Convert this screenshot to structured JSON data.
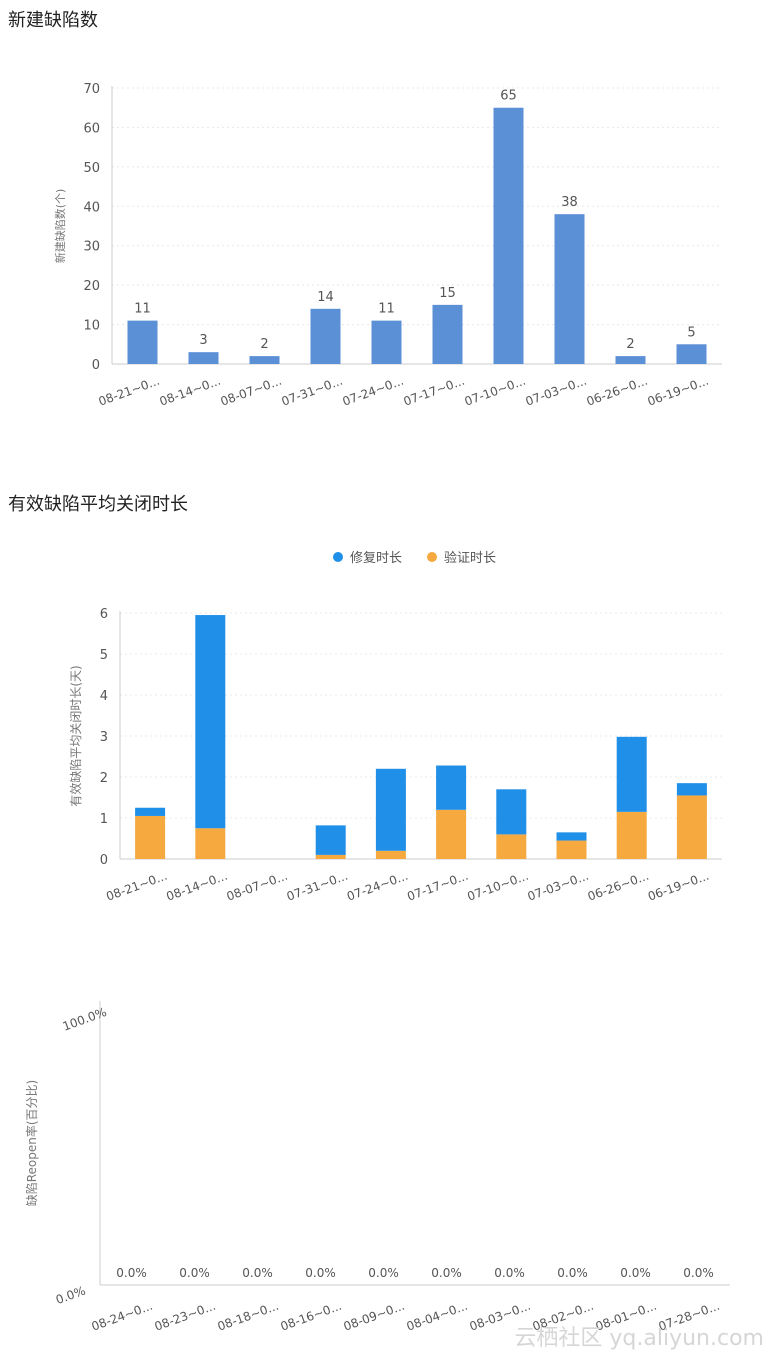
{
  "colors": {
    "bar1": "#5b8fd6",
    "repair": "#1f8fe8",
    "verify": "#f5a93f",
    "axis": "#cccccc",
    "grid": "#e8e8e8",
    "text": "#555555"
  },
  "sections": {
    "new_defects_title": "新建缺陷数",
    "avg_close_title": "有效缺陷平均关闭时长"
  },
  "watermark": "云栖社区 yq.aliyun.com",
  "chart_data": [
    {
      "type": "bar",
      "title": "新建缺陷数",
      "ylabel": "新建缺陷数(个)",
      "ylim": [
        0,
        70
      ],
      "yticks": [
        0,
        10,
        20,
        30,
        40,
        50,
        60,
        70
      ],
      "categories": [
        "08-21~0...",
        "08-14~0...",
        "08-07~0...",
        "07-31~0...",
        "07-24~0...",
        "07-17~0...",
        "07-10~0...",
        "07-03~0...",
        "06-26~0...",
        "06-19~0..."
      ],
      "values": [
        11,
        3,
        2,
        14,
        11,
        15,
        65,
        38,
        2,
        5
      ],
      "data_labels": true,
      "grid": true
    },
    {
      "type": "bar",
      "stacked": true,
      "title": "有效缺陷平均关闭时长",
      "ylabel": "有效缺陷平均关闭时长(天)",
      "ylim": [
        0,
        6
      ],
      "yticks": [
        0,
        1,
        2,
        3,
        4,
        5,
        6
      ],
      "legend_position": "top-center",
      "categories": [
        "08-21~0...",
        "08-14~0...",
        "08-07~0...",
        "07-31~0...",
        "07-24~0...",
        "07-17~0...",
        "07-10~0...",
        "07-03~0...",
        "06-26~0...",
        "06-19~0..."
      ],
      "series": [
        {
          "name": "验证时长",
          "values": [
            1.05,
            0.75,
            0,
            0.1,
            0.2,
            1.2,
            0.6,
            0.45,
            1.15,
            1.55
          ]
        },
        {
          "name": "修复时长",
          "values": [
            0.2,
            5.2,
            0,
            0.72,
            2.0,
            1.08,
            1.1,
            0.2,
            1.83,
            0.3
          ]
        }
      ],
      "grid": true
    },
    {
      "type": "line",
      "ylabel": "缺陷Reopen率(百分比)",
      "ylim": [
        0,
        100
      ],
      "yticks": [
        "0.0%",
        "100.0%"
      ],
      "categories": [
        "08-24~0...",
        "08-23~0...",
        "08-18~0...",
        "08-16~0...",
        "08-09~0...",
        "08-04~0...",
        "08-03~0...",
        "08-02~0...",
        "08-01~0...",
        "07-28~0..."
      ],
      "values": [
        0,
        0,
        0,
        0,
        0,
        0,
        0,
        0,
        0,
        0
      ],
      "value_labels": [
        "0.0%",
        "0.0%",
        "0.0%",
        "0.0%",
        "0.0%",
        "0.0%",
        "0.0%",
        "0.0%",
        "0.0%",
        "0.0%"
      ],
      "grid": false
    }
  ]
}
